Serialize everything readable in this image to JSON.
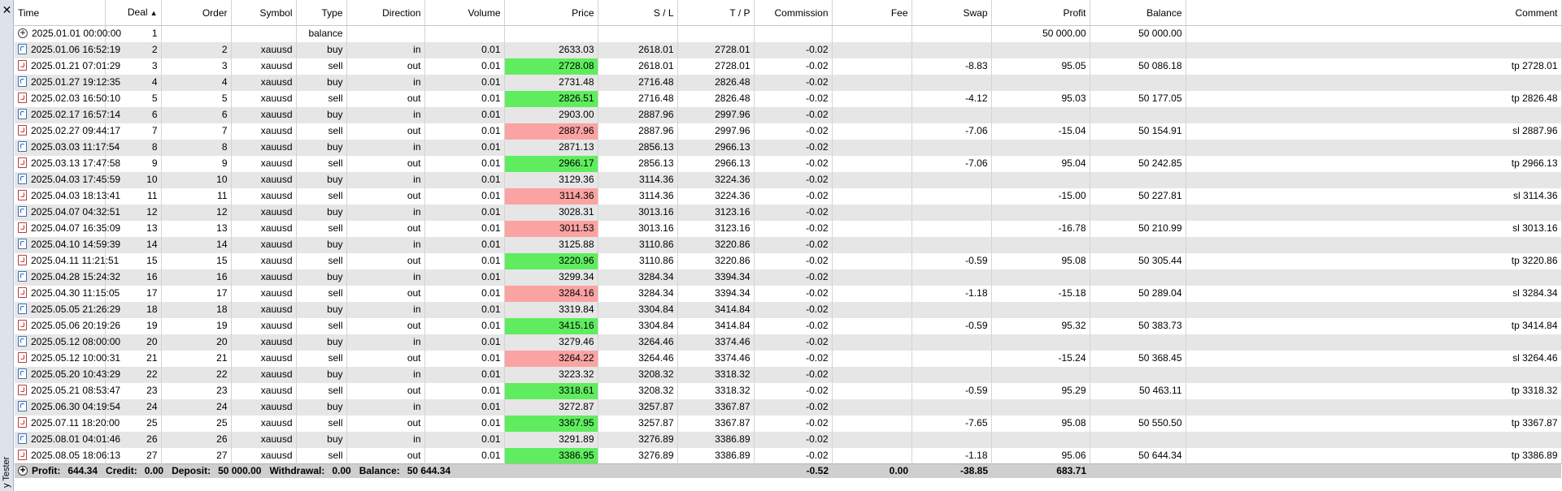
{
  "sidebar": {
    "close_glyph": "✕",
    "label": "y Tester",
    "close_icon": "close-icon"
  },
  "columns": [
    {
      "key": "time",
      "label": "Time",
      "align": "l"
    },
    {
      "key": "deal",
      "label": "Deal",
      "align": "r",
      "sorted": "▲"
    },
    {
      "key": "order",
      "label": "Order",
      "align": "r"
    },
    {
      "key": "symbol",
      "label": "Symbol",
      "align": "r"
    },
    {
      "key": "type",
      "label": "Type",
      "align": "r"
    },
    {
      "key": "direction",
      "label": "Direction",
      "align": "r"
    },
    {
      "key": "volume",
      "label": "Volume",
      "align": "r"
    },
    {
      "key": "price",
      "label": "Price",
      "align": "r"
    },
    {
      "key": "sl",
      "label": "S / L",
      "align": "r"
    },
    {
      "key": "tp",
      "label": "T / P",
      "align": "r"
    },
    {
      "key": "commission",
      "label": "Commission",
      "align": "r"
    },
    {
      "key": "fee",
      "label": "Fee",
      "align": "r"
    },
    {
      "key": "swap",
      "label": "Swap",
      "align": "r"
    },
    {
      "key": "profit",
      "label": "Profit",
      "align": "r"
    },
    {
      "key": "balance",
      "label": "Balance",
      "align": "r"
    },
    {
      "key": "comment",
      "label": "Comment",
      "align": "r"
    }
  ],
  "rows": [
    {
      "icon": "bal",
      "time": "2025.01.01 00:00:00",
      "deal": "1",
      "order": "",
      "symbol": "",
      "type": "balance",
      "direction": "",
      "volume": "",
      "price": "",
      "sl": "",
      "tp": "",
      "commission": "",
      "fee": "",
      "swap": "",
      "profit": "50 000.00",
      "balance": "50 000.00",
      "comment": "",
      "hl": ""
    },
    {
      "icon": "buy",
      "time": "2025.01.06 16:52:19",
      "deal": "2",
      "order": "2",
      "symbol": "xauusd",
      "type": "buy",
      "direction": "in",
      "volume": "0.01",
      "price": "2633.03",
      "sl": "2618.01",
      "tp": "2728.01",
      "commission": "-0.02",
      "fee": "",
      "swap": "",
      "profit": "",
      "balance": "",
      "comment": "",
      "hl": ""
    },
    {
      "icon": "sell",
      "time": "2025.01.21 07:01:29",
      "deal": "3",
      "order": "3",
      "symbol": "xauusd",
      "type": "sell",
      "direction": "out",
      "volume": "0.01",
      "price": "2728.08",
      "sl": "2618.01",
      "tp": "2728.01",
      "commission": "-0.02",
      "fee": "",
      "swap": "-8.83",
      "profit": "95.05",
      "balance": "50 086.18",
      "comment": "tp 2728.01",
      "hl": "pos"
    },
    {
      "icon": "buy",
      "time": "2025.01.27 19:12:35",
      "deal": "4",
      "order": "4",
      "symbol": "xauusd",
      "type": "buy",
      "direction": "in",
      "volume": "0.01",
      "price": "2731.48",
      "sl": "2716.48",
      "tp": "2826.48",
      "commission": "-0.02",
      "fee": "",
      "swap": "",
      "profit": "",
      "balance": "",
      "comment": "",
      "hl": ""
    },
    {
      "icon": "sell",
      "time": "2025.02.03 16:50:10",
      "deal": "5",
      "order": "5",
      "symbol": "xauusd",
      "type": "sell",
      "direction": "out",
      "volume": "0.01",
      "price": "2826.51",
      "sl": "2716.48",
      "tp": "2826.48",
      "commission": "-0.02",
      "fee": "",
      "swap": "-4.12",
      "profit": "95.03",
      "balance": "50 177.05",
      "comment": "tp 2826.48",
      "hl": "pos"
    },
    {
      "icon": "buy",
      "time": "2025.02.17 16:57:14",
      "deal": "6",
      "order": "6",
      "symbol": "xauusd",
      "type": "buy",
      "direction": "in",
      "volume": "0.01",
      "price": "2903.00",
      "sl": "2887.96",
      "tp": "2997.96",
      "commission": "-0.02",
      "fee": "",
      "swap": "",
      "profit": "",
      "balance": "",
      "comment": "",
      "hl": ""
    },
    {
      "icon": "sell",
      "time": "2025.02.27 09:44:17",
      "deal": "7",
      "order": "7",
      "symbol": "xauusd",
      "type": "sell",
      "direction": "out",
      "volume": "0.01",
      "price": "2887.96",
      "sl": "2887.96",
      "tp": "2997.96",
      "commission": "-0.02",
      "fee": "",
      "swap": "-7.06",
      "profit": "-15.04",
      "balance": "50 154.91",
      "comment": "sl 2887.96",
      "hl": "neg"
    },
    {
      "icon": "buy",
      "time": "2025.03.03 11:17:54",
      "deal": "8",
      "order": "8",
      "symbol": "xauusd",
      "type": "buy",
      "direction": "in",
      "volume": "0.01",
      "price": "2871.13",
      "sl": "2856.13",
      "tp": "2966.13",
      "commission": "-0.02",
      "fee": "",
      "swap": "",
      "profit": "",
      "balance": "",
      "comment": "",
      "hl": ""
    },
    {
      "icon": "sell",
      "time": "2025.03.13 17:47:58",
      "deal": "9",
      "order": "9",
      "symbol": "xauusd",
      "type": "sell",
      "direction": "out",
      "volume": "0.01",
      "price": "2966.17",
      "sl": "2856.13",
      "tp": "2966.13",
      "commission": "-0.02",
      "fee": "",
      "swap": "-7.06",
      "profit": "95.04",
      "balance": "50 242.85",
      "comment": "tp 2966.13",
      "hl": "pos"
    },
    {
      "icon": "buy",
      "time": "2025.04.03 17:45:59",
      "deal": "10",
      "order": "10",
      "symbol": "xauusd",
      "type": "buy",
      "direction": "in",
      "volume": "0.01",
      "price": "3129.36",
      "sl": "3114.36",
      "tp": "3224.36",
      "commission": "-0.02",
      "fee": "",
      "swap": "",
      "profit": "",
      "balance": "",
      "comment": "",
      "hl": ""
    },
    {
      "icon": "sell",
      "time": "2025.04.03 18:13:41",
      "deal": "11",
      "order": "11",
      "symbol": "xauusd",
      "type": "sell",
      "direction": "out",
      "volume": "0.01",
      "price": "3114.36",
      "sl": "3114.36",
      "tp": "3224.36",
      "commission": "-0.02",
      "fee": "",
      "swap": "",
      "profit": "-15.00",
      "balance": "50 227.81",
      "comment": "sl 3114.36",
      "hl": "neg"
    },
    {
      "icon": "buy",
      "time": "2025.04.07 04:32:51",
      "deal": "12",
      "order": "12",
      "symbol": "xauusd",
      "type": "buy",
      "direction": "in",
      "volume": "0.01",
      "price": "3028.31",
      "sl": "3013.16",
      "tp": "3123.16",
      "commission": "-0.02",
      "fee": "",
      "swap": "",
      "profit": "",
      "balance": "",
      "comment": "",
      "hl": ""
    },
    {
      "icon": "sell",
      "time": "2025.04.07 16:35:09",
      "deal": "13",
      "order": "13",
      "symbol": "xauusd",
      "type": "sell",
      "direction": "out",
      "volume": "0.01",
      "price": "3011.53",
      "sl": "3013.16",
      "tp": "3123.16",
      "commission": "-0.02",
      "fee": "",
      "swap": "",
      "profit": "-16.78",
      "balance": "50 210.99",
      "comment": "sl 3013.16",
      "hl": "neg"
    },
    {
      "icon": "buy",
      "time": "2025.04.10 14:59:39",
      "deal": "14",
      "order": "14",
      "symbol": "xauusd",
      "type": "buy",
      "direction": "in",
      "volume": "0.01",
      "price": "3125.88",
      "sl": "3110.86",
      "tp": "3220.86",
      "commission": "-0.02",
      "fee": "",
      "swap": "",
      "profit": "",
      "balance": "",
      "comment": "",
      "hl": ""
    },
    {
      "icon": "sell",
      "time": "2025.04.11 11:21:51",
      "deal": "15",
      "order": "15",
      "symbol": "xauusd",
      "type": "sell",
      "direction": "out",
      "volume": "0.01",
      "price": "3220.96",
      "sl": "3110.86",
      "tp": "3220.86",
      "commission": "-0.02",
      "fee": "",
      "swap": "-0.59",
      "profit": "95.08",
      "balance": "50 305.44",
      "comment": "tp 3220.86",
      "hl": "pos"
    },
    {
      "icon": "buy",
      "time": "2025.04.28 15:24:32",
      "deal": "16",
      "order": "16",
      "symbol": "xauusd",
      "type": "buy",
      "direction": "in",
      "volume": "0.01",
      "price": "3299.34",
      "sl": "3284.34",
      "tp": "3394.34",
      "commission": "-0.02",
      "fee": "",
      "swap": "",
      "profit": "",
      "balance": "",
      "comment": "",
      "hl": ""
    },
    {
      "icon": "sell",
      "time": "2025.04.30 11:15:05",
      "deal": "17",
      "order": "17",
      "symbol": "xauusd",
      "type": "sell",
      "direction": "out",
      "volume": "0.01",
      "price": "3284.16",
      "sl": "3284.34",
      "tp": "3394.34",
      "commission": "-0.02",
      "fee": "",
      "swap": "-1.18",
      "profit": "-15.18",
      "balance": "50 289.04",
      "comment": "sl 3284.34",
      "hl": "neg"
    },
    {
      "icon": "buy",
      "time": "2025.05.05 21:26:29",
      "deal": "18",
      "order": "18",
      "symbol": "xauusd",
      "type": "buy",
      "direction": "in",
      "volume": "0.01",
      "price": "3319.84",
      "sl": "3304.84",
      "tp": "3414.84",
      "commission": "-0.02",
      "fee": "",
      "swap": "",
      "profit": "",
      "balance": "",
      "comment": "",
      "hl": ""
    },
    {
      "icon": "sell",
      "time": "2025.05.06 20:19:26",
      "deal": "19",
      "order": "19",
      "symbol": "xauusd",
      "type": "sell",
      "direction": "out",
      "volume": "0.01",
      "price": "3415.16",
      "sl": "3304.84",
      "tp": "3414.84",
      "commission": "-0.02",
      "fee": "",
      "swap": "-0.59",
      "profit": "95.32",
      "balance": "50 383.73",
      "comment": "tp 3414.84",
      "hl": "pos"
    },
    {
      "icon": "buy",
      "time": "2025.05.12 08:00:00",
      "deal": "20",
      "order": "20",
      "symbol": "xauusd",
      "type": "buy",
      "direction": "in",
      "volume": "0.01",
      "price": "3279.46",
      "sl": "3264.46",
      "tp": "3374.46",
      "commission": "-0.02",
      "fee": "",
      "swap": "",
      "profit": "",
      "balance": "",
      "comment": "",
      "hl": ""
    },
    {
      "icon": "sell",
      "time": "2025.05.12 10:00:31",
      "deal": "21",
      "order": "21",
      "symbol": "xauusd",
      "type": "sell",
      "direction": "out",
      "volume": "0.01",
      "price": "3264.22",
      "sl": "3264.46",
      "tp": "3374.46",
      "commission": "-0.02",
      "fee": "",
      "swap": "",
      "profit": "-15.24",
      "balance": "50 368.45",
      "comment": "sl 3264.46",
      "hl": "neg"
    },
    {
      "icon": "buy",
      "time": "2025.05.20 10:43:29",
      "deal": "22",
      "order": "22",
      "symbol": "xauusd",
      "type": "buy",
      "direction": "in",
      "volume": "0.01",
      "price": "3223.32",
      "sl": "3208.32",
      "tp": "3318.32",
      "commission": "-0.02",
      "fee": "",
      "swap": "",
      "profit": "",
      "balance": "",
      "comment": "",
      "hl": ""
    },
    {
      "icon": "sell",
      "time": "2025.05.21 08:53:47",
      "deal": "23",
      "order": "23",
      "symbol": "xauusd",
      "type": "sell",
      "direction": "out",
      "volume": "0.01",
      "price": "3318.61",
      "sl": "3208.32",
      "tp": "3318.32",
      "commission": "-0.02",
      "fee": "",
      "swap": "-0.59",
      "profit": "95.29",
      "balance": "50 463.11",
      "comment": "tp 3318.32",
      "hl": "pos"
    },
    {
      "icon": "buy",
      "time": "2025.06.30 04:19:54",
      "deal": "24",
      "order": "24",
      "symbol": "xauusd",
      "type": "buy",
      "direction": "in",
      "volume": "0.01",
      "price": "3272.87",
      "sl": "3257.87",
      "tp": "3367.87",
      "commission": "-0.02",
      "fee": "",
      "swap": "",
      "profit": "",
      "balance": "",
      "comment": "",
      "hl": ""
    },
    {
      "icon": "sell",
      "time": "2025.07.11 18:20:00",
      "deal": "25",
      "order": "25",
      "symbol": "xauusd",
      "type": "sell",
      "direction": "out",
      "volume": "0.01",
      "price": "3367.95",
      "sl": "3257.87",
      "tp": "3367.87",
      "commission": "-0.02",
      "fee": "",
      "swap": "-7.65",
      "profit": "95.08",
      "balance": "50 550.50",
      "comment": "tp 3367.87",
      "hl": "pos"
    },
    {
      "icon": "buy",
      "time": "2025.08.01 04:01:46",
      "deal": "26",
      "order": "26",
      "symbol": "xauusd",
      "type": "buy",
      "direction": "in",
      "volume": "0.01",
      "price": "3291.89",
      "sl": "3276.89",
      "tp": "3386.89",
      "commission": "-0.02",
      "fee": "",
      "swap": "",
      "profit": "",
      "balance": "",
      "comment": "",
      "hl": ""
    },
    {
      "icon": "sell",
      "time": "2025.08.05 18:06:13",
      "deal": "27",
      "order": "27",
      "symbol": "xauusd",
      "type": "sell",
      "direction": "out",
      "volume": "0.01",
      "price": "3386.95",
      "sl": "3276.89",
      "tp": "3386.89",
      "commission": "-0.02",
      "fee": "",
      "swap": "-1.18",
      "profit": "95.06",
      "balance": "50 644.34",
      "comment": "tp 3386.89",
      "hl": "pos"
    }
  ],
  "footer": {
    "summary": [
      {
        "label": "Profit:",
        "value": "644.34"
      },
      {
        "label": "Credit:",
        "value": "0.00"
      },
      {
        "label": "Deposit:",
        "value": "50 000.00"
      },
      {
        "label": "Withdrawal:",
        "value": "0.00"
      },
      {
        "label": "Balance:",
        "value": "50 644.34"
      }
    ],
    "commission": "-0.52",
    "fee": "0.00",
    "swap": "-38.85",
    "profit": "683.71"
  },
  "colors": {
    "positive": "#5fed5f",
    "negative": "#fba3a3",
    "stripe": "#e6e6e6",
    "footer": "#cfcfcf"
  }
}
